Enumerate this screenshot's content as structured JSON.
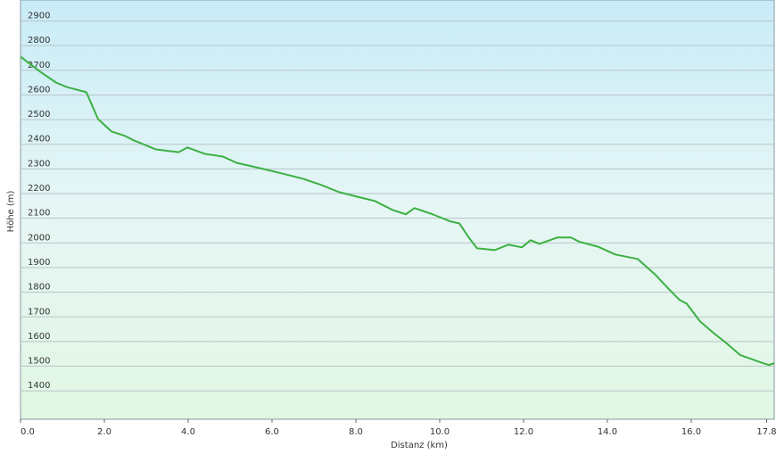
{
  "chart_data": {
    "type": "line",
    "x_label": "Distanz  (km)",
    "y_label": "Höhe (m)",
    "x": [
      0,
      0.47,
      0.85,
      1.1,
      1.57,
      1.85,
      2.17,
      2.49,
      2.7,
      3.23,
      3.77,
      3.98,
      4.4,
      4.83,
      5.15,
      5.89,
      6.32,
      6.74,
      7.17,
      7.6,
      8.02,
      8.45,
      8.87,
      9.19,
      9.4,
      9.83,
      10.26,
      10.47,
      10.68,
      10.89,
      11.32,
      11.64,
      11.96,
      12.17,
      12.38,
      12.81,
      13.13,
      13.34,
      13.77,
      14.19,
      14.72,
      15.15,
      15.47,
      15.72,
      15.89,
      16.21,
      16.53,
      16.85,
      17.17,
      17.6,
      17.85,
      17.98
    ],
    "series": [
      {
        "name": "Höhe",
        "color": "#3cb043",
        "values": [
          2755,
          2694,
          2650,
          2632,
          2611,
          2502,
          2452,
          2434,
          2416,
          2379,
          2368,
          2387,
          2361,
          2350,
          2325,
          2296,
          2278,
          2260,
          2235,
          2206,
          2188,
          2170,
          2134,
          2116,
          2141,
          2116,
          2087,
          2079,
          2025,
          1978,
          1971,
          1993,
          1982,
          2011,
          1996,
          2022,
          2022,
          2004,
          1985,
          1953,
          1935,
          1870,
          1812,
          1769,
          1754,
          1682,
          1635,
          1592,
          1545,
          1519,
          1505,
          1512
        ]
      }
    ],
    "xlim": [
      0,
      17.98
    ],
    "ylim": [
      1285,
      2985
    ],
    "xticks": [
      {
        "value": 0,
        "label": "0.0"
      },
      {
        "value": 2,
        "label": "2.0"
      },
      {
        "value": 4,
        "label": "4.0"
      },
      {
        "value": 6,
        "label": "6.0"
      },
      {
        "value": 8,
        "label": "8.0"
      },
      {
        "value": 10,
        "label": "10.0"
      },
      {
        "value": 12,
        "label": "12.0"
      },
      {
        "value": 14,
        "label": "14.0"
      },
      {
        "value": 16,
        "label": "16.0"
      },
      {
        "value": 17.8,
        "label": "17.8"
      }
    ],
    "yticks": [
      1400,
      1500,
      1600,
      1700,
      1800,
      1900,
      2000,
      2100,
      2200,
      2300,
      2400,
      2500,
      2600,
      2700,
      2800,
      2900
    ],
    "grid": true
  }
}
